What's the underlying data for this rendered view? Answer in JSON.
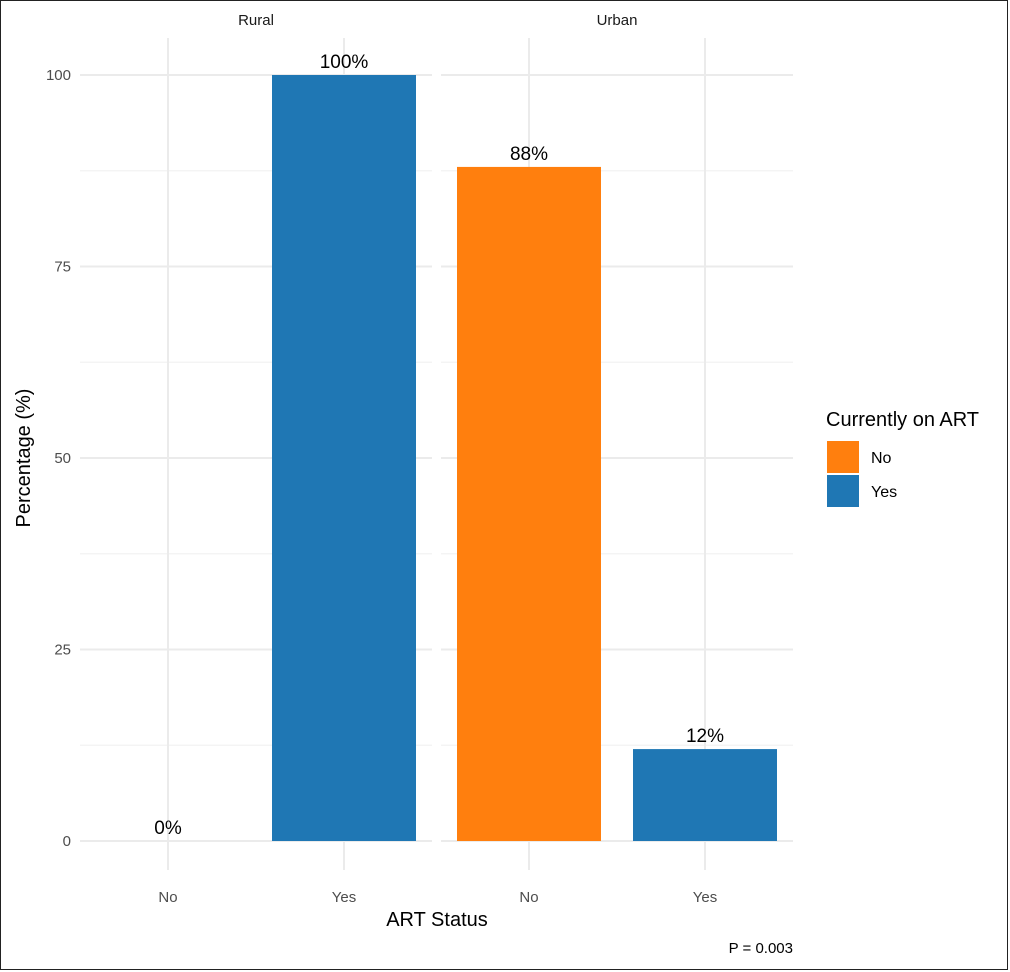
{
  "chart_data": {
    "type": "bar",
    "x_title": "ART Status",
    "y_title": "Percentage (%)",
    "ylim": [
      0,
      105
    ],
    "y_ticks": [
      0,
      25,
      50,
      75,
      100
    ],
    "grid": true,
    "legend": {
      "title": "Currently on ART",
      "position": "right",
      "entries": [
        {
          "label": "No",
          "color": "#ff7f0e"
        },
        {
          "label": "Yes",
          "color": "#1f77b4"
        }
      ]
    },
    "facets": [
      {
        "name": "Rural",
        "categories": [
          "No",
          "Yes"
        ],
        "values": [
          0,
          100
        ],
        "labels": [
          "0%",
          "100%"
        ],
        "fill": [
          "No",
          "Yes"
        ]
      },
      {
        "name": "Urban",
        "categories": [
          "No",
          "Yes"
        ],
        "values": [
          88,
          12
        ],
        "labels": [
          "88%",
          "12%"
        ],
        "fill": [
          "No",
          "Yes"
        ]
      }
    ],
    "annotation": "P = 0.003"
  }
}
